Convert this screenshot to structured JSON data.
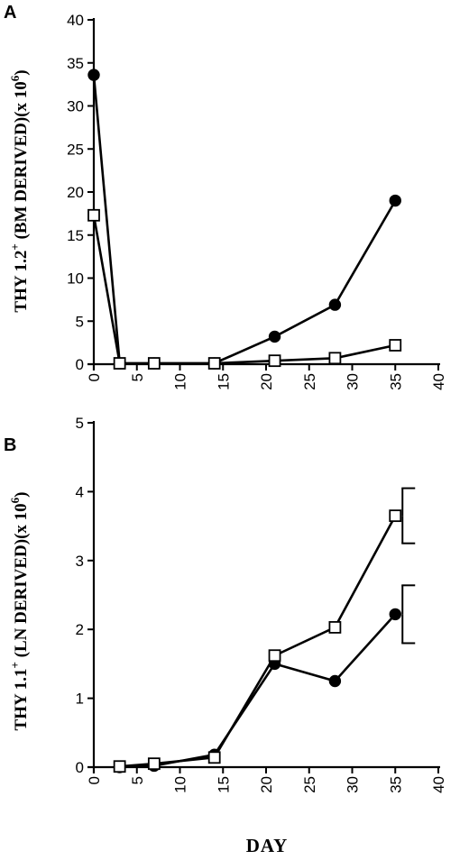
{
  "figure": {
    "xlabel": "DAY"
  },
  "chart_data": [
    {
      "panel": "A",
      "type": "line",
      "ylabel_parts": [
        "THY 1.2",
        "+",
        " (BM DERIVED)(x 10",
        "6",
        ")"
      ],
      "xlim": [
        0,
        40
      ],
      "ylim": [
        0,
        40
      ],
      "xticks": [
        0,
        5,
        10,
        15,
        20,
        25,
        30,
        35,
        40
      ],
      "yticks": [
        0,
        5,
        10,
        15,
        20,
        25,
        30,
        35,
        40
      ],
      "grid": false,
      "series": [
        {
          "marker": "filled-circle",
          "x": [
            0,
            3,
            7,
            14,
            21,
            28,
            35
          ],
          "y": [
            33.6,
            0.1,
            0.1,
            0.1,
            3.2,
            6.9,
            19.0
          ]
        },
        {
          "marker": "open-square",
          "x": [
            0,
            3,
            7,
            14,
            21,
            28,
            35
          ],
          "y": [
            17.3,
            0.1,
            0.1,
            0.1,
            0.4,
            0.7,
            2.2
          ]
        }
      ]
    },
    {
      "panel": "B",
      "type": "line",
      "ylabel_parts": [
        "THY 1.1",
        "+",
        " (LN DERIVED)(x 10",
        "6",
        ")"
      ],
      "xlim": [
        0,
        40
      ],
      "ylim": [
        0,
        5
      ],
      "xticks": [
        0,
        5,
        10,
        15,
        20,
        25,
        30,
        35,
        40
      ],
      "yticks": [
        0,
        1,
        2,
        3,
        4,
        5
      ],
      "grid": false,
      "series": [
        {
          "marker": "filled-circle",
          "x": [
            3,
            7,
            14,
            21,
            28,
            35
          ],
          "y": [
            0.0,
            0.02,
            0.18,
            1.5,
            1.25,
            2.22
          ],
          "error": [
            0,
            0,
            0,
            0,
            0,
            0.42
          ]
        },
        {
          "marker": "open-square",
          "x": [
            3,
            7,
            14,
            21,
            28,
            35
          ],
          "y": [
            0.01,
            0.05,
            0.14,
            1.62,
            2.03,
            3.65
          ],
          "error": [
            0,
            0,
            0,
            0,
            0,
            0.4
          ]
        }
      ]
    }
  ]
}
